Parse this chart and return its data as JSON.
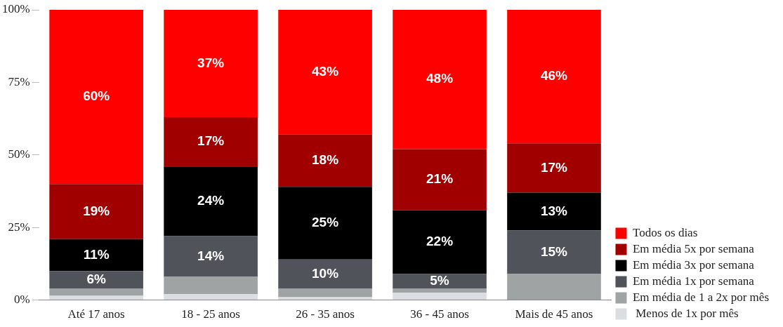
{
  "chart_data": {
    "type": "bar",
    "stacked": true,
    "categories": [
      "Até 17 anos",
      "18 - 25 anos",
      "26 - 35 anos",
      "36 - 45 anos",
      "Mais de 45 anos"
    ],
    "series": [
      {
        "name": " Menos de 1x por mês",
        "color": "#dcdde0",
        "values": [
          1.5,
          2,
          1,
          2.5,
          0
        ],
        "value_labels": [
          null,
          null,
          null,
          null,
          null
        ]
      },
      {
        "name": "Em média de 1 a 2x por mês",
        "color": "#a0a3a3",
        "values": [
          2.5,
          6,
          3,
          1.5,
          9
        ],
        "value_labels": [
          null,
          null,
          null,
          null,
          null
        ]
      },
      {
        "name": "Em média 1x por semana",
        "color": "#50535a",
        "values": [
          6,
          14,
          10,
          5,
          15
        ],
        "value_labels": [
          "6%",
          "14%",
          "10%",
          "5%",
          "15%"
        ]
      },
      {
        "name": "Em média 3x por semana",
        "color": "#000000",
        "values": [
          11,
          24,
          25,
          22,
          13
        ],
        "value_labels": [
          "11%",
          "24%",
          "25%",
          "22%",
          "13%"
        ]
      },
      {
        "name": "Em média 5x por semana",
        "color": "#a00000",
        "values": [
          19,
          17,
          18,
          21,
          17
        ],
        "value_labels": [
          "19%",
          "17%",
          "18%",
          "21%",
          "17%"
        ]
      },
      {
        "name": "Todos os dias",
        "color": "#ff0000",
        "values": [
          60,
          37,
          43,
          48,
          46
        ],
        "value_labels": [
          "60%",
          "37%",
          "43%",
          "48%",
          "46%"
        ]
      }
    ],
    "ylim": [
      0,
      100
    ],
    "yticks": [
      {
        "value": 0,
        "label": "0%"
      },
      {
        "value": 25,
        "label": "25%"
      },
      {
        "value": 50,
        "label": "50%"
      },
      {
        "value": 75,
        "label": "75%"
      },
      {
        "value": 100,
        "label": "100%"
      }
    ],
    "grid": false,
    "legend": "right"
  }
}
